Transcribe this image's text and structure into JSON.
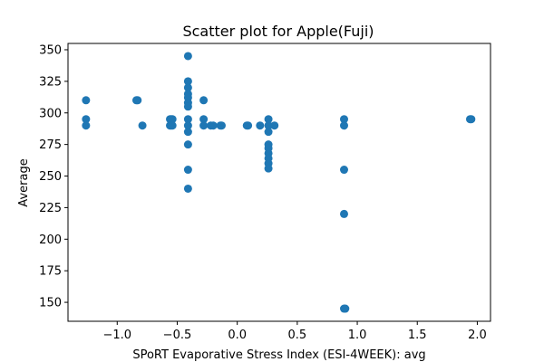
{
  "chart_data": {
    "type": "scatter",
    "title": "Scatter plot for Apple(Fuji)",
    "xlabel": "SPoRT Evaporative Stress Index (ESI-4WEEK): avg",
    "ylabel": "Average",
    "xlim": [
      -1.41,
      2.11
    ],
    "ylim": [
      135,
      355
    ],
    "xticks": [
      -1.0,
      -0.5,
      0.0,
      0.5,
      1.0,
      1.5,
      2.0
    ],
    "xtick_labels": [
      "−1.0",
      "−0.5",
      "0.0",
      "0.5",
      "1.0",
      "1.5",
      "2.0"
    ],
    "yticks": [
      150,
      175,
      200,
      225,
      250,
      275,
      300,
      325,
      350
    ],
    "ytick_labels": [
      "150",
      "175",
      "200",
      "225",
      "250",
      "275",
      "300",
      "325",
      "350"
    ],
    "grid": false,
    "marker_color": "#1f77b4",
    "series": [
      {
        "name": "",
        "points": [
          {
            "x": -1.26,
            "y": 310
          },
          {
            "x": -1.26,
            "y": 295
          },
          {
            "x": -1.26,
            "y": 290
          },
          {
            "x": -0.84,
            "y": 310
          },
          {
            "x": -0.83,
            "y": 310
          },
          {
            "x": -0.79,
            "y": 290
          },
          {
            "x": -0.56,
            "y": 295
          },
          {
            "x": -0.55,
            "y": 295
          },
          {
            "x": -0.54,
            "y": 295
          },
          {
            "x": -0.56,
            "y": 290
          },
          {
            "x": -0.55,
            "y": 290
          },
          {
            "x": -0.54,
            "y": 290
          },
          {
            "x": -0.41,
            "y": 345
          },
          {
            "x": -0.41,
            "y": 325
          },
          {
            "x": -0.41,
            "y": 320
          },
          {
            "x": -0.41,
            "y": 315
          },
          {
            "x": -0.41,
            "y": 312
          },
          {
            "x": -0.41,
            "y": 308
          },
          {
            "x": -0.41,
            "y": 305
          },
          {
            "x": -0.41,
            "y": 295
          },
          {
            "x": -0.41,
            "y": 290
          },
          {
            "x": -0.41,
            "y": 285
          },
          {
            "x": -0.41,
            "y": 275
          },
          {
            "x": -0.41,
            "y": 255
          },
          {
            "x": -0.41,
            "y": 240
          },
          {
            "x": -0.28,
            "y": 310
          },
          {
            "x": -0.28,
            "y": 295
          },
          {
            "x": -0.28,
            "y": 290
          },
          {
            "x": -0.22,
            "y": 290
          },
          {
            "x": -0.2,
            "y": 290
          },
          {
            "x": -0.14,
            "y": 290
          },
          {
            "x": -0.13,
            "y": 290
          },
          {
            "x": 0.08,
            "y": 290
          },
          {
            "x": 0.09,
            "y": 290
          },
          {
            "x": 0.19,
            "y": 290
          },
          {
            "x": 0.26,
            "y": 295
          },
          {
            "x": 0.26,
            "y": 290
          },
          {
            "x": 0.26,
            "y": 285
          },
          {
            "x": 0.26,
            "y": 275
          },
          {
            "x": 0.26,
            "y": 272
          },
          {
            "x": 0.26,
            "y": 268
          },
          {
            "x": 0.26,
            "y": 264
          },
          {
            "x": 0.26,
            "y": 260
          },
          {
            "x": 0.26,
            "y": 256
          },
          {
            "x": 0.31,
            "y": 290
          },
          {
            "x": 0.89,
            "y": 295
          },
          {
            "x": 0.89,
            "y": 290
          },
          {
            "x": 0.89,
            "y": 255
          },
          {
            "x": 0.89,
            "y": 220
          },
          {
            "x": 0.89,
            "y": 145
          },
          {
            "x": 0.9,
            "y": 145
          },
          {
            "x": 1.94,
            "y": 295
          },
          {
            "x": 1.95,
            "y": 295
          }
        ]
      }
    ]
  }
}
